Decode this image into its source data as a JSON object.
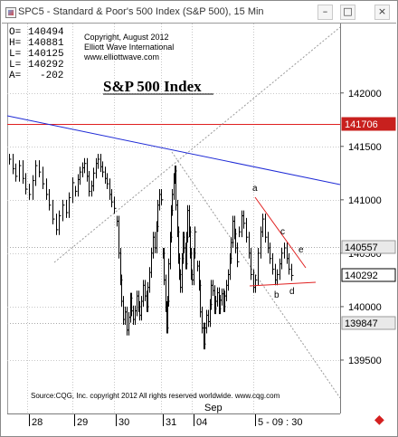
{
  "window": {
    "title": "SPC5 - Standard & Poor's 500 Index (S&P 500), 15 Min",
    "minimize_glyph": "–",
    "maximize_glyph": "□",
    "close_glyph": "×"
  },
  "ohlc": [
    {
      "label": "O=",
      "value": "140494"
    },
    {
      "label": "H=",
      "value": "140881"
    },
    {
      "label": "L=",
      "value": "140125"
    },
    {
      "label": "L=",
      "value": "140292"
    },
    {
      "label": "A=",
      "value": "-202"
    }
  ],
  "header_notes": {
    "copyright": "Copyright, August 2012",
    "company": "Elliott Wave International",
    "website": "www.elliottwave.com"
  },
  "chart_heading": "S&P 500 Index",
  "source_note": "Source:CQG, Inc. copyright 2012 All rights reserved worldwide. www.cqg.com",
  "nav_arrow_glyph": "◆",
  "colors": {
    "bars": "#000000",
    "trendline": "#1f2bd6",
    "level_line": "#e02020",
    "wedge": "#e02020",
    "projection": "#9a9a9a",
    "grid": "#c8c8c8",
    "label_box": "#e9e9e9",
    "highlight_box": "#c8201e",
    "current_box": "#ffffff"
  },
  "chart_data": {
    "type": "ohlc",
    "title": "S&P 500 Index",
    "instrument": "SPC5",
    "interval": "15 Min",
    "y_axis": {
      "ticks": [
        142000,
        141500,
        141000,
        140500,
        140000,
        139500
      ],
      "tick_labels": [
        "142000",
        "141500",
        "141000",
        "140500",
        "140000",
        "139500"
      ],
      "ylim": [
        139000,
        142650
      ]
    },
    "x_axis": {
      "ticks": [
        "28",
        "29",
        "30",
        "31",
        "04",
        "5 - 09 : 30"
      ],
      "month_label": "Sep"
    },
    "price_labels": [
      {
        "value": 141706,
        "text": "141706",
        "style": "highlight"
      },
      {
        "value": 140557,
        "text": "140557",
        "style": "box"
      },
      {
        "value": 140292,
        "text": "140292",
        "style": "current"
      },
      {
        "value": 139847,
        "text": "139847",
        "style": "box"
      }
    ],
    "horizontal_levels": [
      {
        "value": 141706,
        "color": "red"
      },
      {
        "value": 140557,
        "color": "gray-dotted"
      },
      {
        "value": 139847,
        "color": "gray-dotted"
      }
    ],
    "wave_labels": [
      "a",
      "b",
      "c",
      "d",
      "e"
    ],
    "grid": true,
    "sessions": [
      {
        "label": "28",
        "bars": [
          141380,
          141290,
          141220,
          141320,
          141200,
          141100,
          141050,
          141180,
          141320,
          141260,
          141150,
          141050,
          140950,
          140820,
          140720,
          140850,
          140950,
          140880,
          141020,
          141160
        ]
      },
      {
        "label": "29",
        "bars": [
          141080,
          141190,
          141260,
          141300,
          141340,
          141220,
          141080,
          141130,
          141250,
          141340,
          141380,
          141310,
          141260,
          141200,
          141150,
          141050,
          140980,
          140920
        ]
      },
      {
        "label": "30",
        "bars": [
          140800,
          140500,
          140250,
          140050,
          139880,
          139950,
          139780,
          139900,
          140080,
          139960,
          139880,
          139960,
          140100,
          140000,
          139920,
          140050,
          140200,
          140100,
          140000,
          140180,
          140320,
          140500,
          140650,
          140550,
          140750,
          140950,
          141050,
          141000
        ]
      },
      {
        "label": "31",
        "bars": [
          140500,
          140250,
          140000,
          139800,
          140050,
          140400,
          140650,
          140900,
          141050,
          141200,
          141270,
          140950,
          140700,
          140450,
          140300,
          140180,
          140450,
          140650,
          140550,
          140400,
          140650,
          140900,
          140700,
          140500,
          140300,
          140250,
          140500,
          140700
        ]
      },
      {
        "label": "04",
        "bars": [
          140380,
          140200,
          139950,
          139800,
          139650,
          139800,
          139920,
          139860,
          140020,
          140200,
          140150,
          139980,
          140050,
          140130,
          139980,
          140060,
          140120,
          140000,
          140100,
          140200,
          140300,
          140450,
          140600,
          140800,
          140680,
          140550,
          140420
        ]
      },
      {
        "label": "05",
        "bars": [
          140700,
          140850,
          140780,
          140650,
          140500,
          140300,
          140180,
          140250,
          140500,
          140700,
          140820,
          140650,
          140550,
          140450,
          140350,
          140250,
          140300,
          140400,
          140500,
          140550,
          140450,
          140350,
          140292
        ]
      }
    ]
  }
}
